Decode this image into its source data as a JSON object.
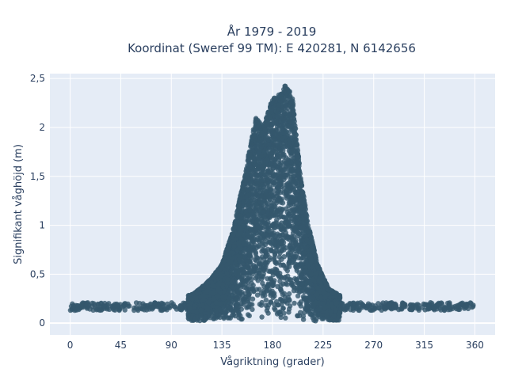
{
  "chart_data": {
    "type": "scatter",
    "title_lines": [
      "År 1979 - 2019",
      "Koordinat (Sweref 99 TM): E 420281, N 6142656"
    ],
    "xlabel": "Vågriktning (grader)",
    "ylabel": "Signifikant våghöjd (m)",
    "xlim": [
      -18,
      378
    ],
    "ylim": [
      -0.12,
      2.55
    ],
    "x_ticks": [
      0,
      45,
      90,
      135,
      180,
      225,
      270,
      315,
      360
    ],
    "x_tick_labels": [
      "0",
      "45",
      "90",
      "135",
      "180",
      "225",
      "270",
      "315",
      "360"
    ],
    "y_ticks": [
      0,
      0.5,
      1,
      1.5,
      2,
      2.5
    ],
    "y_tick_labels": [
      "0",
      "0,5",
      "1",
      "1,5",
      "2",
      "2,5"
    ],
    "grid": true,
    "legend": "none",
    "colors": {
      "marker": "#35586d",
      "plot_bg": "#e5ecf6",
      "grid": "#ffffff",
      "text": "#2a3f5f"
    },
    "series": [
      {
        "values_note_free": true,
        "envelope_upper": [
          {
            "x": 0,
            "y": 0.21
          },
          {
            "x": 45,
            "y": 0.22
          },
          {
            "x": 90,
            "y": 0.24
          },
          {
            "x": 110,
            "y": 0.3
          },
          {
            "x": 125,
            "y": 0.45
          },
          {
            "x": 135,
            "y": 0.6
          },
          {
            "x": 145,
            "y": 0.95
          },
          {
            "x": 155,
            "y": 1.5
          },
          {
            "x": 160,
            "y": 1.8
          },
          {
            "x": 165,
            "y": 2.1
          },
          {
            "x": 172,
            "y": 2.0
          },
          {
            "x": 180,
            "y": 2.3
          },
          {
            "x": 188,
            "y": 2.35
          },
          {
            "x": 192,
            "y": 2.45
          },
          {
            "x": 198,
            "y": 2.3
          },
          {
            "x": 205,
            "y": 1.5
          },
          {
            "x": 212,
            "y": 1.0
          },
          {
            "x": 220,
            "y": 0.6
          },
          {
            "x": 230,
            "y": 0.35
          },
          {
            "x": 245,
            "y": 0.25
          },
          {
            "x": 270,
            "y": 0.23
          },
          {
            "x": 315,
            "y": 0.22
          },
          {
            "x": 360,
            "y": 0.21
          }
        ],
        "typical_y": 0.17
      }
    ]
  }
}
